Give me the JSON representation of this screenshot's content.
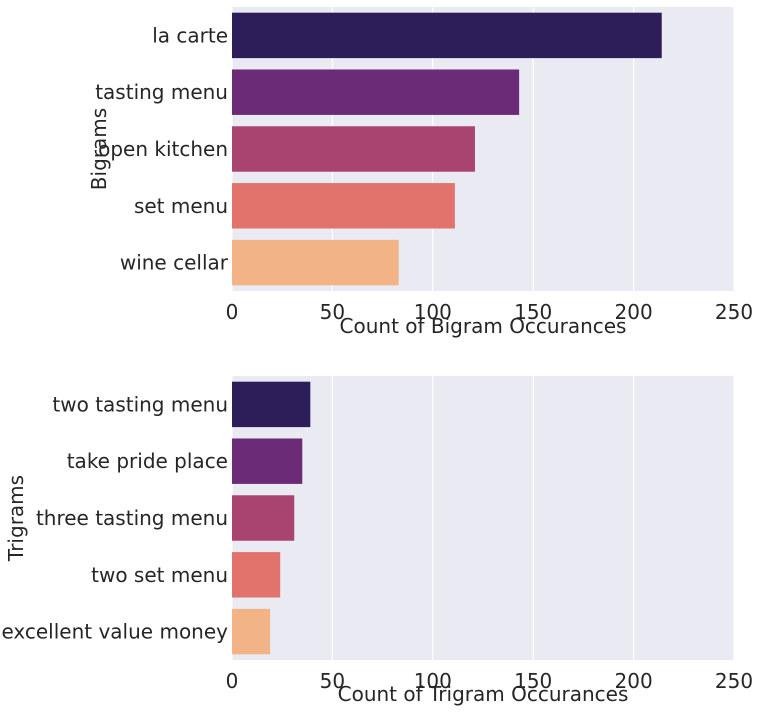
{
  "chart_data": [
    {
      "type": "bar",
      "orientation": "horizontal",
      "categories": [
        "la carte",
        "tasting menu",
        "open kitchen",
        "set menu",
        "wine cellar"
      ],
      "values": [
        214,
        143,
        121,
        111,
        83
      ],
      "colors": [
        "#2d1e5a",
        "#6c2b77",
        "#a8446f",
        "#e2736c",
        "#f2b486"
      ],
      "xlabel": "Count of Bigram Occurances",
      "ylabel": "Bigrams",
      "xlim": [
        0,
        250
      ],
      "xticks": [
        "0",
        "50",
        "100",
        "150",
        "200",
        "250"
      ],
      "grid": true,
      "background": "#eaeaf2"
    },
    {
      "type": "bar",
      "orientation": "horizontal",
      "categories": [
        "two tasting menu",
        "take pride place",
        "three tasting menu",
        "two set menu",
        "excellent value money"
      ],
      "values": [
        39,
        35,
        31,
        24,
        19
      ],
      "colors": [
        "#2d1e5a",
        "#6c2b77",
        "#a8446f",
        "#e2736c",
        "#f2b486"
      ],
      "xlabel": "Count of Trigram Occurances",
      "ylabel": "Trigrams",
      "xlim": [
        0,
        250
      ],
      "xticks": [
        "0",
        "50",
        "100",
        "150",
        "200",
        "250"
      ],
      "grid": true,
      "background": "#eaeaf2"
    }
  ]
}
